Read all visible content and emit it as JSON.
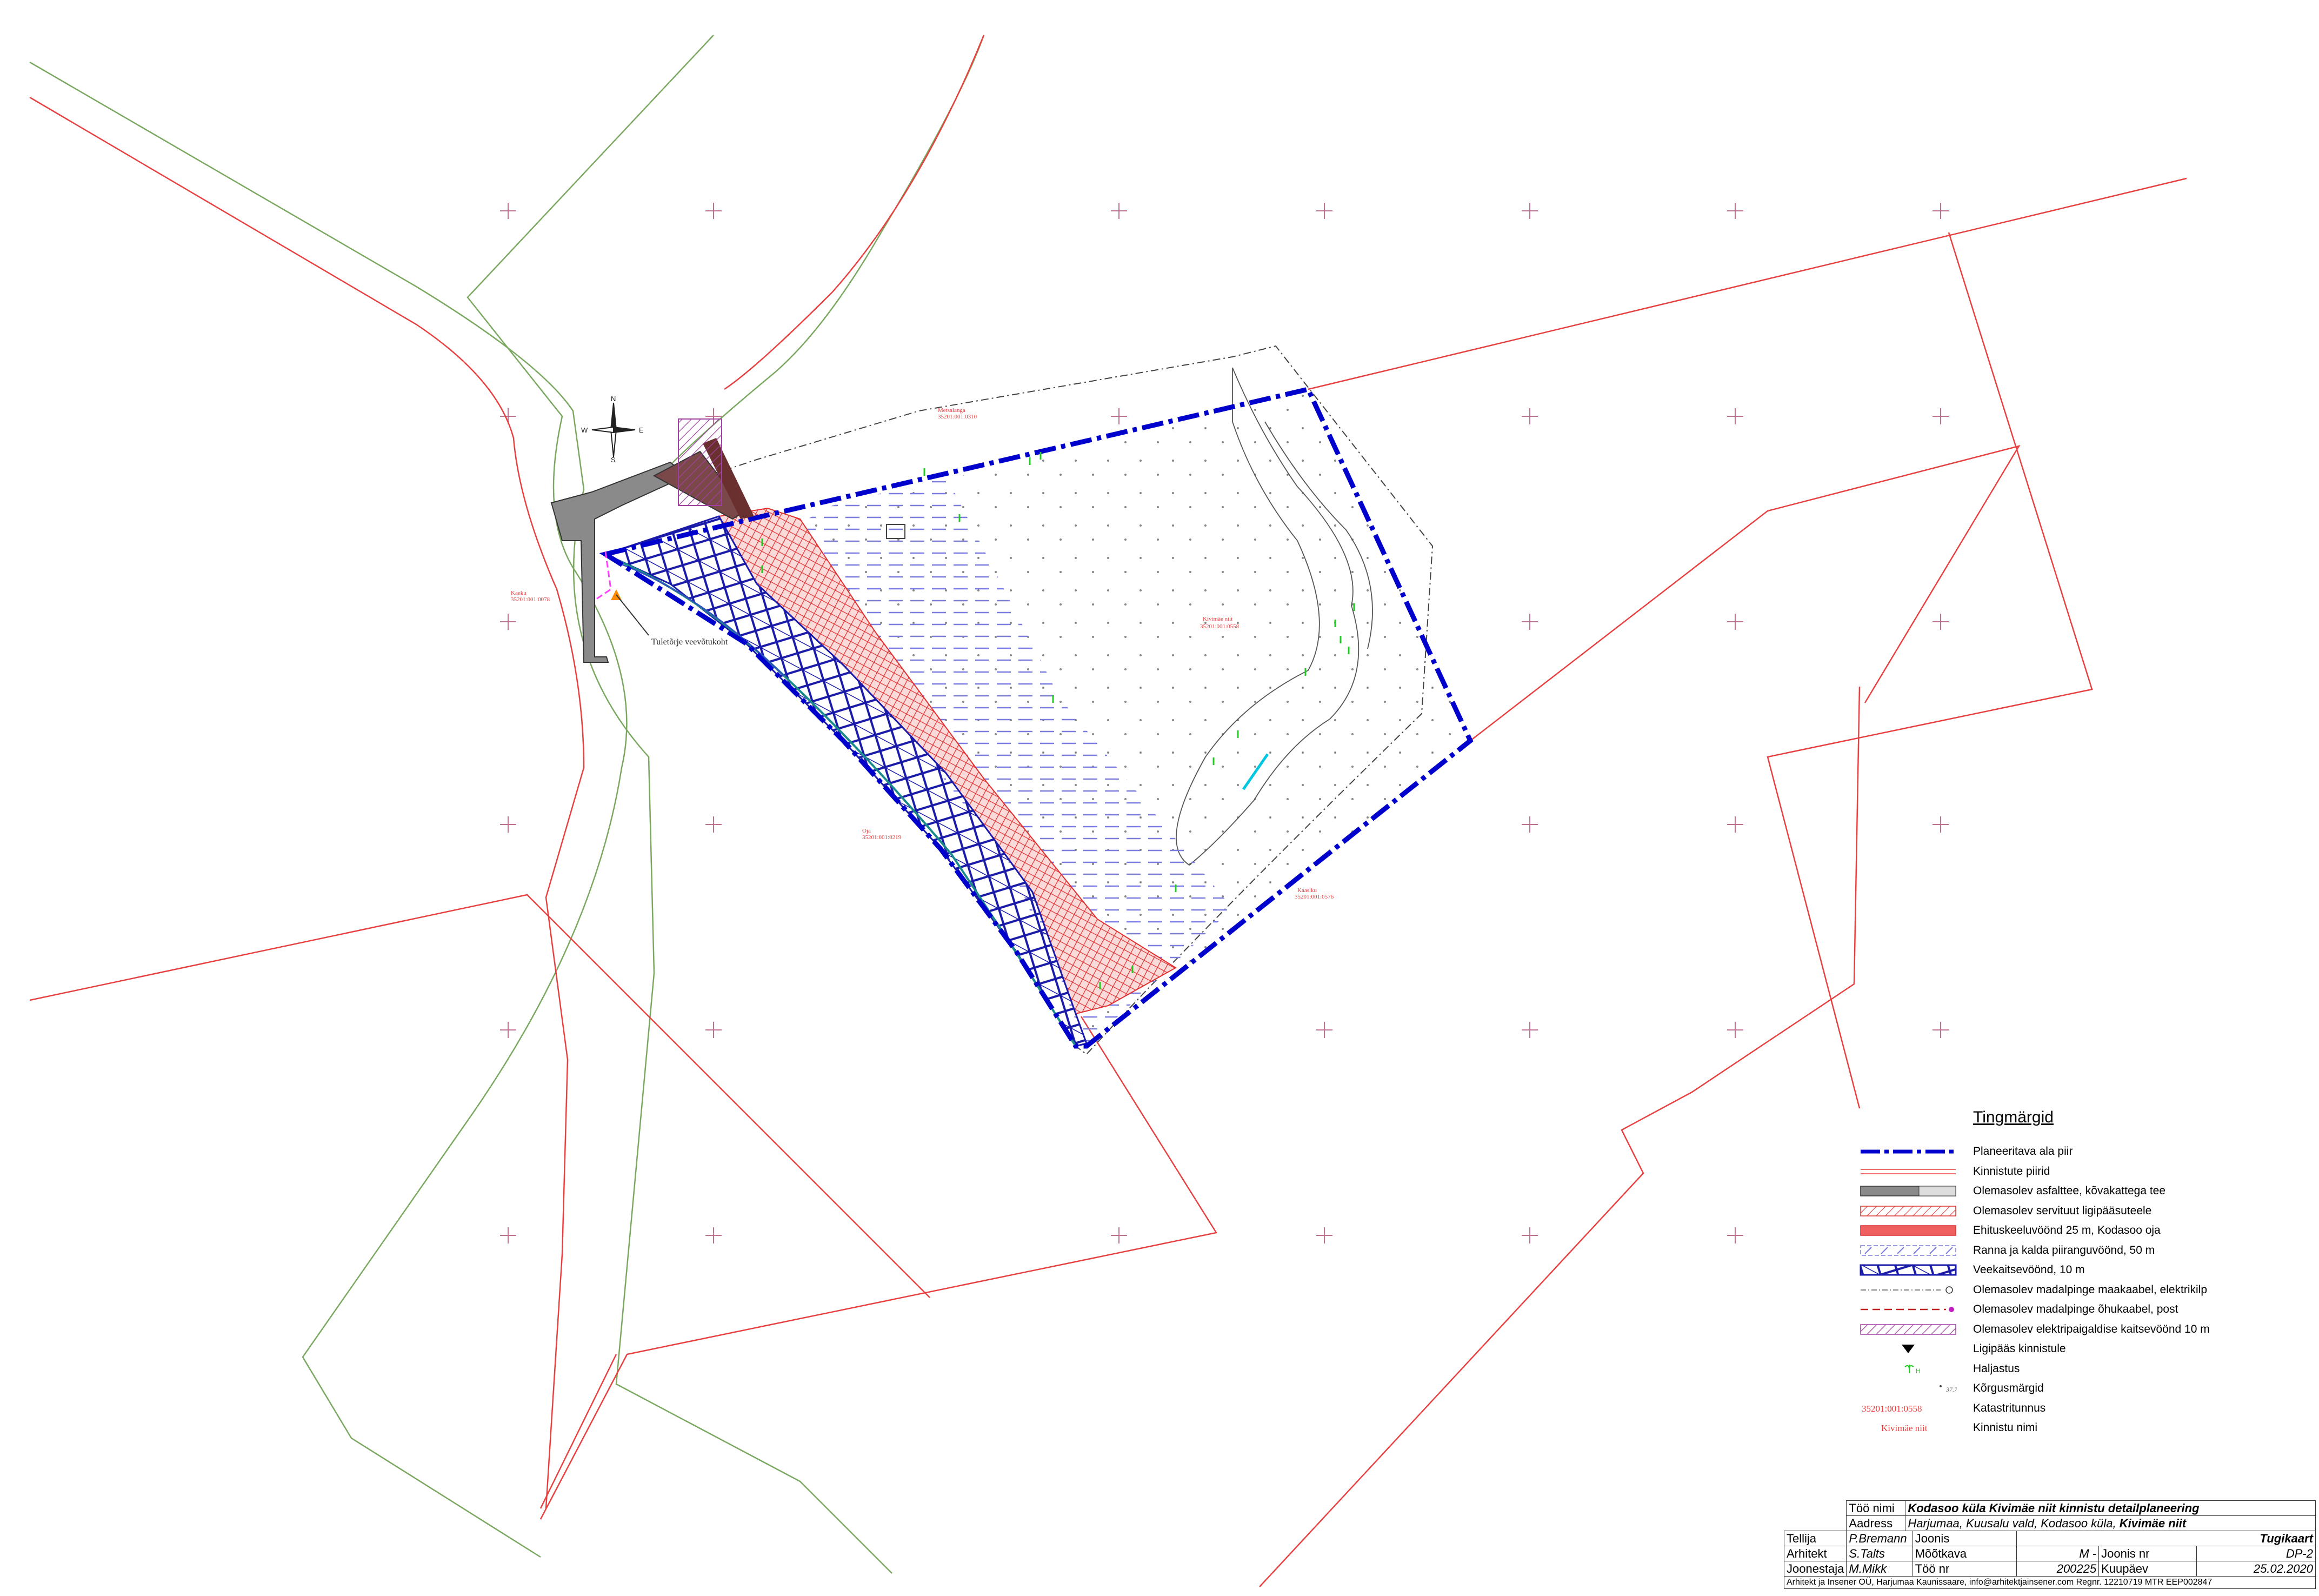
{
  "map": {
    "road_label": "Tuletõrje veevõtukoht",
    "parcel_labels": [
      {
        "cadastre": "35201:001:0558",
        "name": "Kivimäe niit"
      },
      {
        "cadastre": "35201:001:0310",
        "name": "Metsalanga"
      },
      {
        "cadastre": "35201:001:0219",
        "name": "Oja"
      },
      {
        "cadastre": "35201:001:0576",
        "name": "Kaasiku"
      },
      {
        "cadastre": "35201:001:0078",
        "name": "Kaeku"
      },
      {
        "cadastre": "35201:001:0063",
        "name": "Kivimäe"
      }
    ],
    "compass": {
      "n": "N",
      "s": "S",
      "e": "E",
      "w": "W"
    }
  },
  "legend": {
    "title": "Tingmärgid",
    "items": [
      {
        "label": "Planeeritava ala piir",
        "symbol": "blue-dashdot-line"
      },
      {
        "label": "Kinnistute piirid",
        "symbol": "red-double-line"
      },
      {
        "label": "Olemasolev asfalttee, kõvakattega tee",
        "symbol": "grey-fill"
      },
      {
        "label": "Olemasolev servituut ligipääsuteele",
        "symbol": "red-hatch"
      },
      {
        "label": "Ehituskeeluvöönd 25 m, Kodasoo oja",
        "symbol": "red-grid"
      },
      {
        "label": "Ranna ja kalda piiranguvöönd, 50 m",
        "symbol": "blue-dash-hatch"
      },
      {
        "label": "Veekaitsevöönd, 10 m",
        "symbol": "blue-cross-hatch"
      },
      {
        "label": "Olemasolev madalpinge maakaabel, elektrikilp",
        "symbol": "dash-dot-line"
      },
      {
        "label": "Olemasolev madalpinge õhukaabel, post",
        "symbol": "red-dash-line"
      },
      {
        "label": "Olemasolev elektripaigaldise kaitsevöönd 10 m",
        "symbol": "purple-hatch"
      },
      {
        "label": "Ligipääs kinnistule",
        "symbol": "black-triangle"
      },
      {
        "label": "Haljastus",
        "symbol": "green-tree",
        "glyph_text": "H"
      },
      {
        "label": "Kõrgusmärgid",
        "symbol": "elevation",
        "glyph_text": "37.74"
      },
      {
        "label": "Katastritunnus",
        "symbol": "cadastre-text",
        "glyph_text": "35201:001:0558"
      },
      {
        "label": "Kinnistu nimi",
        "symbol": "name-text",
        "glyph_text": "Kivimäe niit"
      }
    ]
  },
  "title_block": {
    "too_nimi_label": "Töö nimi",
    "too_nimi": "Kodasoo küla Kivimäe niit kinnistu detailplaneering",
    "aadress_label": "Aadress",
    "aadress_prefix": "Harjumaa, Kuusalu vald, Kodasoo küla, ",
    "aadress_bold": "Kivimäe niit",
    "tellija_label": "Tellija",
    "tellija": "P.Bremann",
    "joonis_label": "Joonis",
    "joonis": "Tugikaart",
    "arhitekt_label": "Arhitekt",
    "arhitekt": "S.Talts",
    "mootkava_label": "Mõõtkava",
    "mootkava": "M -",
    "joonis_nr_label": "Joonis nr",
    "joonis_nr": "DP-2",
    "joonestaja_label": "Joonestaja",
    "joonestaja": "M.Mikk",
    "too_nr_label": "Töö nr",
    "too_nr": "200225",
    "kuupaev_label": "Kuupäev",
    "kuupaev": "25.02.2020",
    "footer": "Arhitekt ja Insener OÜ, Harjumaa Kaunissaare, info@arhitektjainsener.com Regnr. 12210719 MTR EEP002847"
  },
  "colors": {
    "plan_boundary": "#0000cc",
    "parcel_boundary": "#e84040",
    "road_grey": "#8a8a8a",
    "servitude_red": "#e03030",
    "water_zone_blue": "#1a1aa8",
    "shore_zone_blue": "#7b7be0",
    "greenery": "#22cc22",
    "electric_purple": "#a040a0"
  }
}
